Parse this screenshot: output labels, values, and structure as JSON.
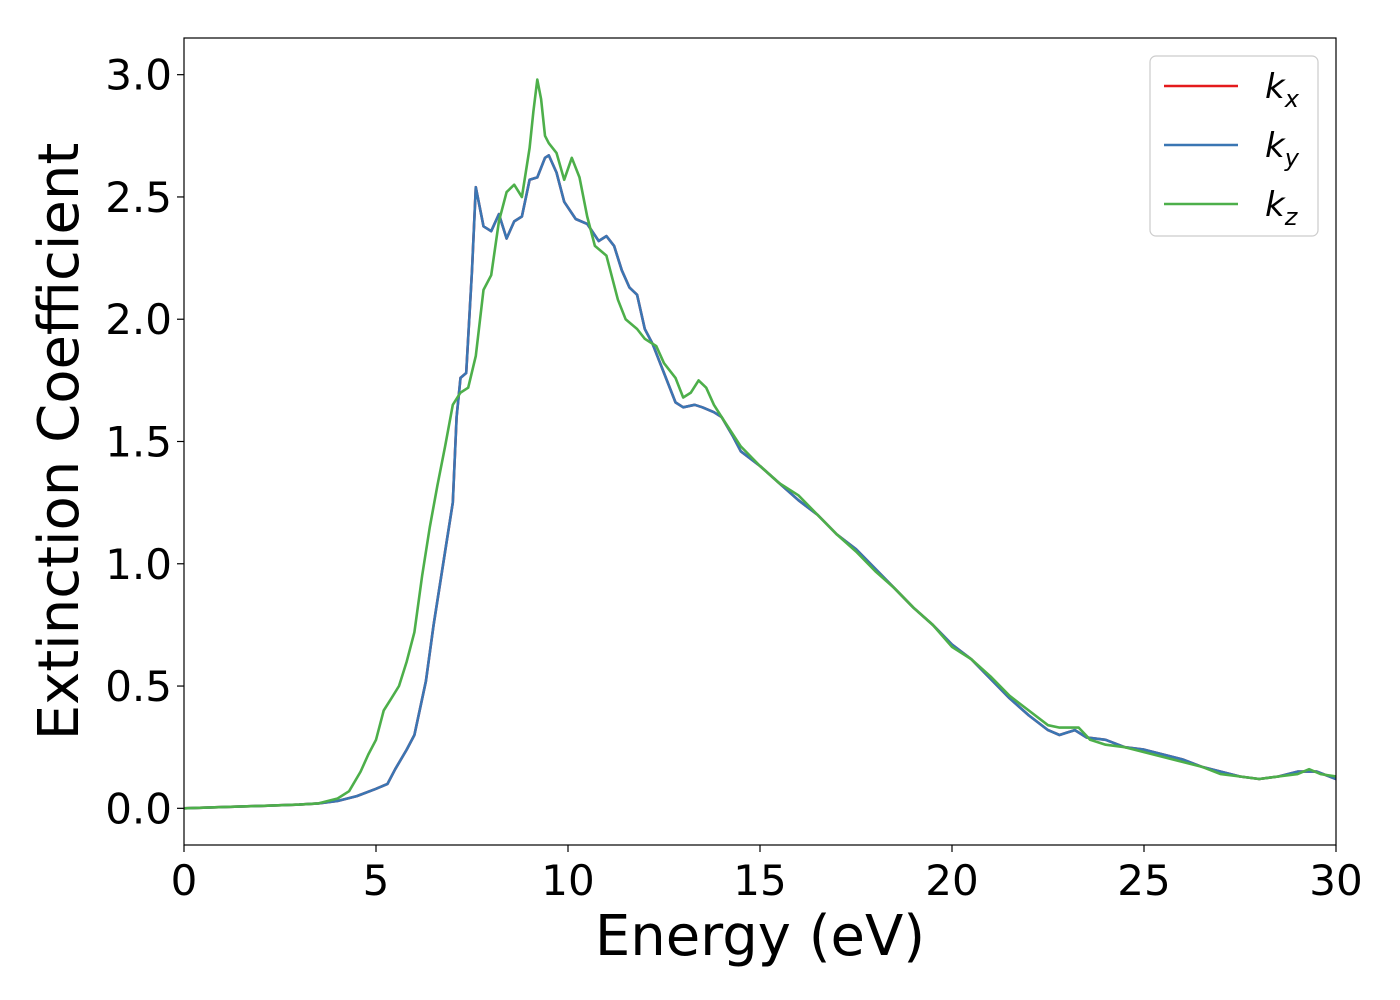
{
  "chart_data": {
    "type": "line",
    "xlabel": "Energy (eV)",
    "ylabel": "Extinction Coefficient",
    "xlim": [
      0,
      30
    ],
    "ylim": [
      -0.15,
      3.15
    ],
    "xticks": [
      0,
      5,
      10,
      15,
      20,
      25,
      30
    ],
    "yticks": [
      0.0,
      0.5,
      1.0,
      1.5,
      2.0,
      2.5,
      3.0
    ],
    "xtick_labels": [
      "0",
      "5",
      "10",
      "15",
      "20",
      "25",
      "30"
    ],
    "ytick_labels": [
      "0.0",
      "0.5",
      "1.0",
      "1.5",
      "2.0",
      "2.5",
      "3.0"
    ],
    "grid": false,
    "legend_position": "top-right",
    "series": [
      {
        "name": "k_x",
        "base": "k",
        "sub": "x",
        "color": "#e41a1c",
        "x": [
          0,
          1,
          2,
          3,
          3.5,
          4,
          4.5,
          5,
          5.3,
          5.5,
          5.8,
          6,
          6.3,
          6.5,
          6.8,
          7,
          7.1,
          7.2,
          7.35,
          7.5,
          7.6,
          7.8,
          8,
          8.2,
          8.4,
          8.6,
          8.8,
          9,
          9.2,
          9.4,
          9.5,
          9.7,
          9.9,
          10.2,
          10.5,
          10.8,
          11,
          11.2,
          11.4,
          11.6,
          11.8,
          12,
          12.2,
          12.5,
          12.8,
          13,
          13.3,
          13.5,
          13.8,
          14,
          14.3,
          14.5,
          15,
          15.5,
          16,
          16.5,
          17,
          17.5,
          18,
          18.5,
          19,
          19.5,
          20,
          20.5,
          21,
          21.5,
          22,
          22.5,
          22.8,
          23,
          23.2,
          23.5,
          24,
          24.5,
          25,
          25.5,
          26,
          26.5,
          27,
          27.5,
          28,
          28.5,
          29,
          29.5,
          30
        ],
        "y": [
          0,
          0.005,
          0.01,
          0.015,
          0.02,
          0.03,
          0.05,
          0.08,
          0.1,
          0.16,
          0.24,
          0.3,
          0.52,
          0.75,
          1.05,
          1.25,
          1.6,
          1.76,
          1.78,
          2.2,
          2.54,
          2.38,
          2.36,
          2.43,
          2.33,
          2.4,
          2.42,
          2.57,
          2.58,
          2.66,
          2.67,
          2.6,
          2.48,
          2.41,
          2.39,
          2.32,
          2.34,
          2.3,
          2.2,
          2.13,
          2.1,
          1.96,
          1.9,
          1.78,
          1.66,
          1.64,
          1.65,
          1.64,
          1.62,
          1.6,
          1.52,
          1.46,
          1.4,
          1.33,
          1.26,
          1.2,
          1.12,
          1.06,
          0.98,
          0.9,
          0.82,
          0.75,
          0.67,
          0.61,
          0.53,
          0.45,
          0.38,
          0.32,
          0.3,
          0.31,
          0.32,
          0.29,
          0.28,
          0.25,
          0.24,
          0.22,
          0.2,
          0.17,
          0.15,
          0.13,
          0.12,
          0.13,
          0.15,
          0.15,
          0.12
        ]
      },
      {
        "name": "k_y",
        "base": "k",
        "sub": "y",
        "color": "#3a76b3",
        "x": [
          0,
          1,
          2,
          3,
          3.5,
          4,
          4.5,
          5,
          5.3,
          5.5,
          5.8,
          6,
          6.3,
          6.5,
          6.8,
          7,
          7.1,
          7.2,
          7.35,
          7.5,
          7.6,
          7.8,
          8,
          8.2,
          8.4,
          8.6,
          8.8,
          9,
          9.2,
          9.4,
          9.5,
          9.7,
          9.9,
          10.2,
          10.5,
          10.8,
          11,
          11.2,
          11.4,
          11.6,
          11.8,
          12,
          12.2,
          12.5,
          12.8,
          13,
          13.3,
          13.5,
          13.8,
          14,
          14.3,
          14.5,
          15,
          15.5,
          16,
          16.5,
          17,
          17.5,
          18,
          18.5,
          19,
          19.5,
          20,
          20.5,
          21,
          21.5,
          22,
          22.5,
          22.8,
          23,
          23.2,
          23.5,
          24,
          24.5,
          25,
          25.5,
          26,
          26.5,
          27,
          27.5,
          28,
          28.5,
          29,
          29.5,
          30
        ],
        "y": [
          0,
          0.005,
          0.01,
          0.015,
          0.02,
          0.03,
          0.05,
          0.08,
          0.1,
          0.16,
          0.24,
          0.3,
          0.52,
          0.75,
          1.05,
          1.25,
          1.6,
          1.76,
          1.78,
          2.2,
          2.54,
          2.38,
          2.36,
          2.43,
          2.33,
          2.4,
          2.42,
          2.57,
          2.58,
          2.66,
          2.67,
          2.6,
          2.48,
          2.41,
          2.39,
          2.32,
          2.34,
          2.3,
          2.2,
          2.13,
          2.1,
          1.96,
          1.9,
          1.78,
          1.66,
          1.64,
          1.65,
          1.64,
          1.62,
          1.6,
          1.52,
          1.46,
          1.4,
          1.33,
          1.26,
          1.2,
          1.12,
          1.06,
          0.98,
          0.9,
          0.82,
          0.75,
          0.67,
          0.61,
          0.53,
          0.45,
          0.38,
          0.32,
          0.3,
          0.31,
          0.32,
          0.29,
          0.28,
          0.25,
          0.24,
          0.22,
          0.2,
          0.17,
          0.15,
          0.13,
          0.12,
          0.13,
          0.15,
          0.15,
          0.12
        ]
      },
      {
        "name": "k_z",
        "base": "k",
        "sub": "z",
        "color": "#4daf4a",
        "x": [
          0,
          1,
          2,
          3,
          3.5,
          4,
          4.3,
          4.6,
          4.8,
          5,
          5.2,
          5.4,
          5.6,
          5.8,
          6,
          6.2,
          6.4,
          6.6,
          6.8,
          7,
          7.2,
          7.4,
          7.6,
          7.8,
          8,
          8.2,
          8.4,
          8.6,
          8.8,
          9,
          9.1,
          9.2,
          9.3,
          9.4,
          9.5,
          9.7,
          9.9,
          10.1,
          10.3,
          10.5,
          10.7,
          11,
          11.3,
          11.5,
          11.8,
          12,
          12.3,
          12.5,
          12.8,
          13,
          13.2,
          13.4,
          13.6,
          13.8,
          14,
          14.5,
          15,
          15.5,
          16,
          16.5,
          17,
          17.5,
          18,
          18.5,
          19,
          19.5,
          20,
          20.5,
          21,
          21.5,
          22,
          22.5,
          22.8,
          23,
          23.3,
          23.6,
          24,
          24.5,
          25,
          25.5,
          26,
          26.5,
          27,
          27.5,
          28,
          28.5,
          29,
          29.3,
          29.6,
          30
        ],
        "y": [
          0,
          0.005,
          0.01,
          0.015,
          0.02,
          0.04,
          0.07,
          0.15,
          0.22,
          0.28,
          0.4,
          0.45,
          0.5,
          0.6,
          0.72,
          0.95,
          1.15,
          1.32,
          1.48,
          1.65,
          1.7,
          1.72,
          1.85,
          2.12,
          2.18,
          2.4,
          2.52,
          2.55,
          2.5,
          2.7,
          2.85,
          2.98,
          2.9,
          2.75,
          2.72,
          2.68,
          2.57,
          2.66,
          2.58,
          2.42,
          2.3,
          2.26,
          2.08,
          2.0,
          1.96,
          1.92,
          1.89,
          1.82,
          1.76,
          1.68,
          1.7,
          1.75,
          1.72,
          1.65,
          1.6,
          1.48,
          1.4,
          1.33,
          1.28,
          1.2,
          1.12,
          1.05,
          0.97,
          0.9,
          0.82,
          0.75,
          0.66,
          0.61,
          0.54,
          0.46,
          0.4,
          0.34,
          0.33,
          0.33,
          0.33,
          0.28,
          0.26,
          0.25,
          0.23,
          0.21,
          0.19,
          0.17,
          0.14,
          0.13,
          0.12,
          0.13,
          0.14,
          0.16,
          0.14,
          0.13
        ]
      }
    ]
  }
}
